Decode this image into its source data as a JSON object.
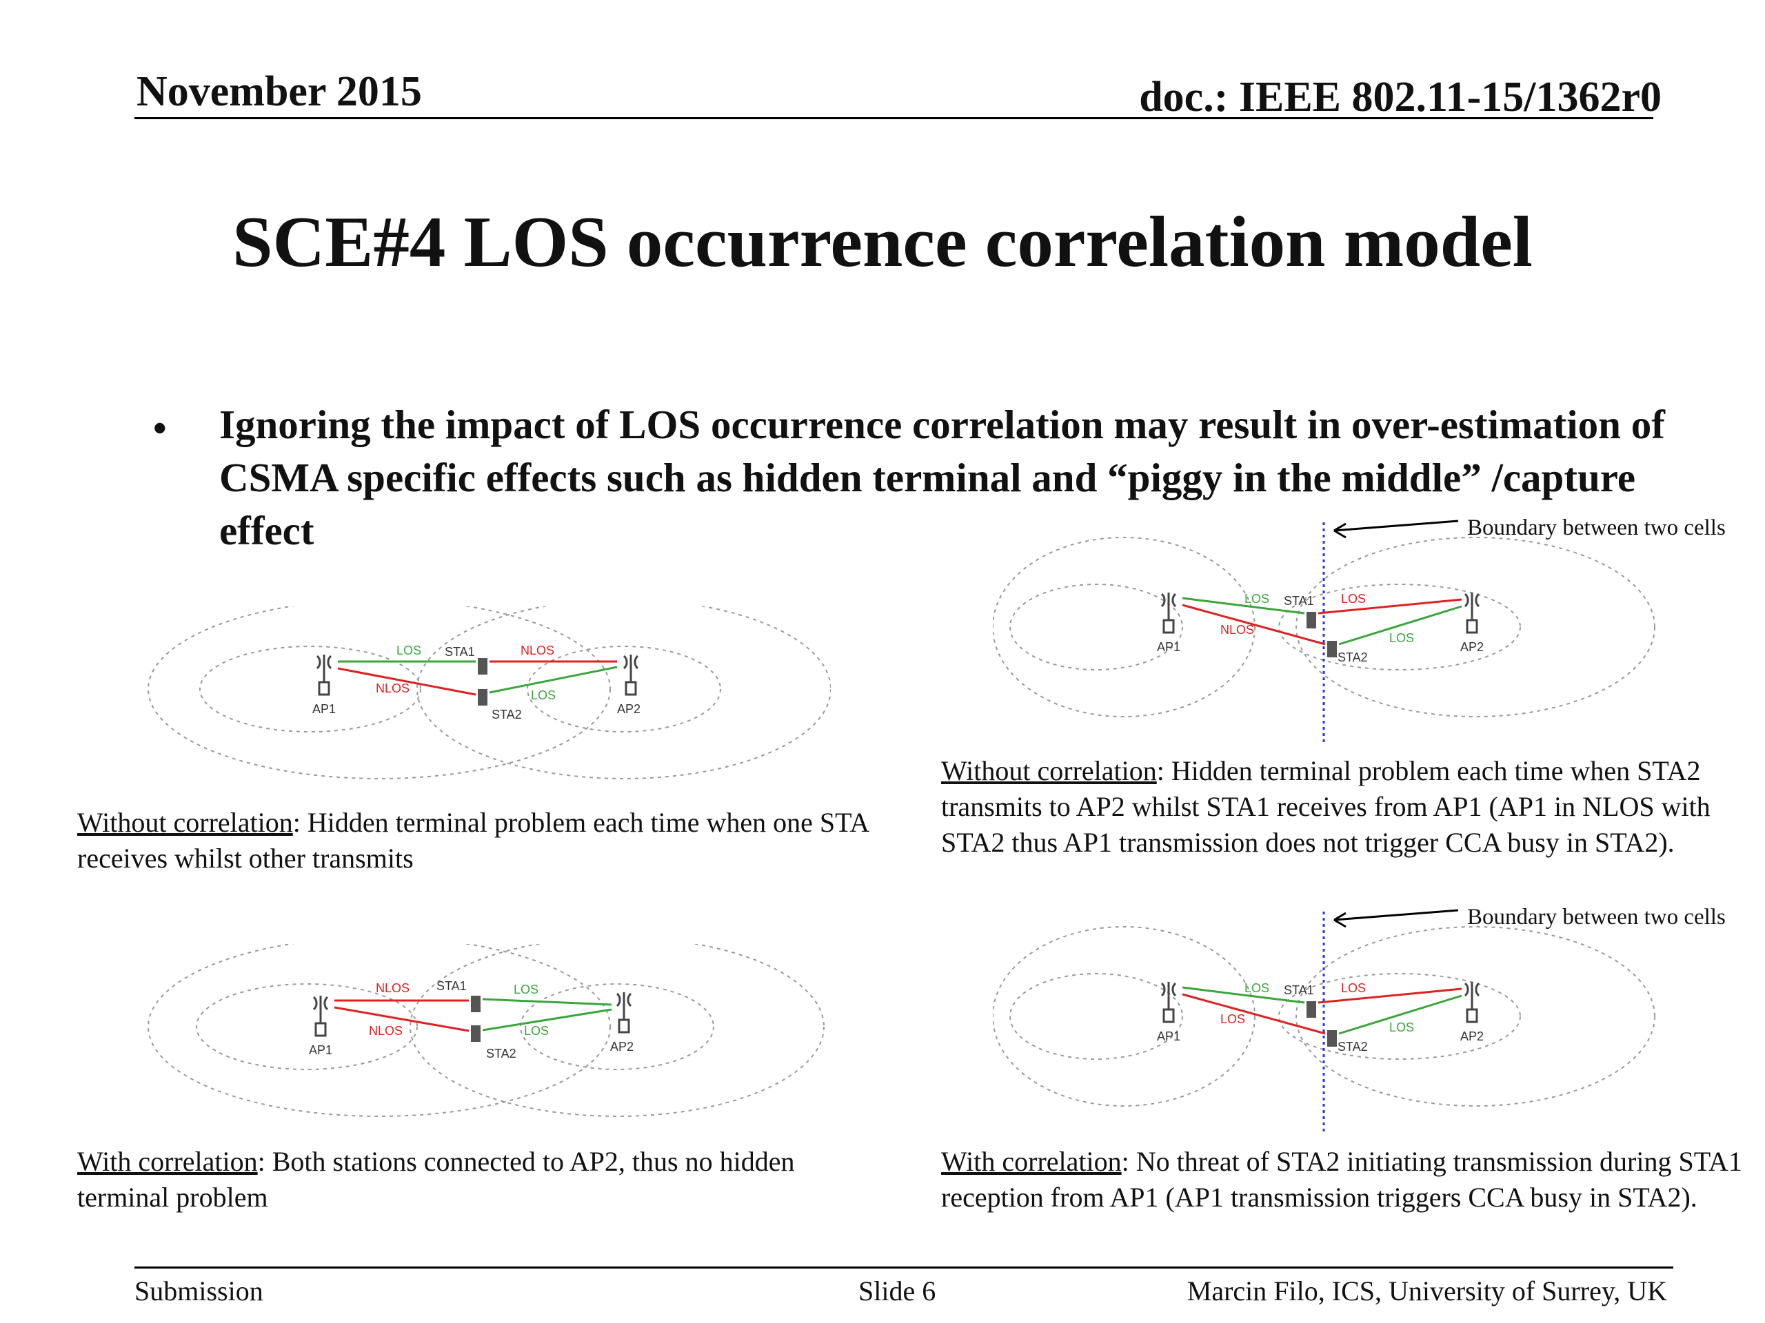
{
  "header": {
    "date": "November 2015",
    "doc_id": "doc.: IEEE 802.11-15/1362r0"
  },
  "title": "SCE#4 LOS occurrence correlation model",
  "bullet": {
    "marker": "•",
    "text": "Ignoring the impact of LOS occurrence correlation may result in over-estimation of CSMA specific effects such as hidden terminal and “piggy in the middle” /capture effect"
  },
  "diagram_labels": {
    "ap1": "AP1",
    "ap2": "AP2",
    "sta1": "STA1",
    "sta2": "STA2",
    "los": "LOS",
    "nlos": "NLOS",
    "boundary": "Boundary between two cells"
  },
  "captions": {
    "tl": {
      "head": "Without correlation",
      "body": ": Hidden terminal problem each time when one STA receives whilst other transmits"
    },
    "tr": {
      "head": "Without correlation",
      "body": ": Hidden terminal problem each time when STA2 transmits to AP2 whilst STA1 receives from AP1 (AP1 in NLOS with STA2 thus AP1 transmission does not trigger CCA busy in STA2)."
    },
    "bl": {
      "head": "With correlation",
      "body": ": Both stations connected to AP2, thus no hidden terminal problem"
    },
    "br": {
      "head": "With correlation",
      "body": ": No threat of STA2 initiating transmission during STA1 reception from AP1 (AP1 transmission triggers CCA busy in STA2)."
    }
  },
  "footer": {
    "left": "Submission",
    "center": "Slide 6",
    "right": "Marcin Filo, ICS, University of Surrey, UK"
  },
  "colors": {
    "los": "#3aa63a",
    "nlos": "#e02020",
    "boundary": "#2233ee"
  }
}
